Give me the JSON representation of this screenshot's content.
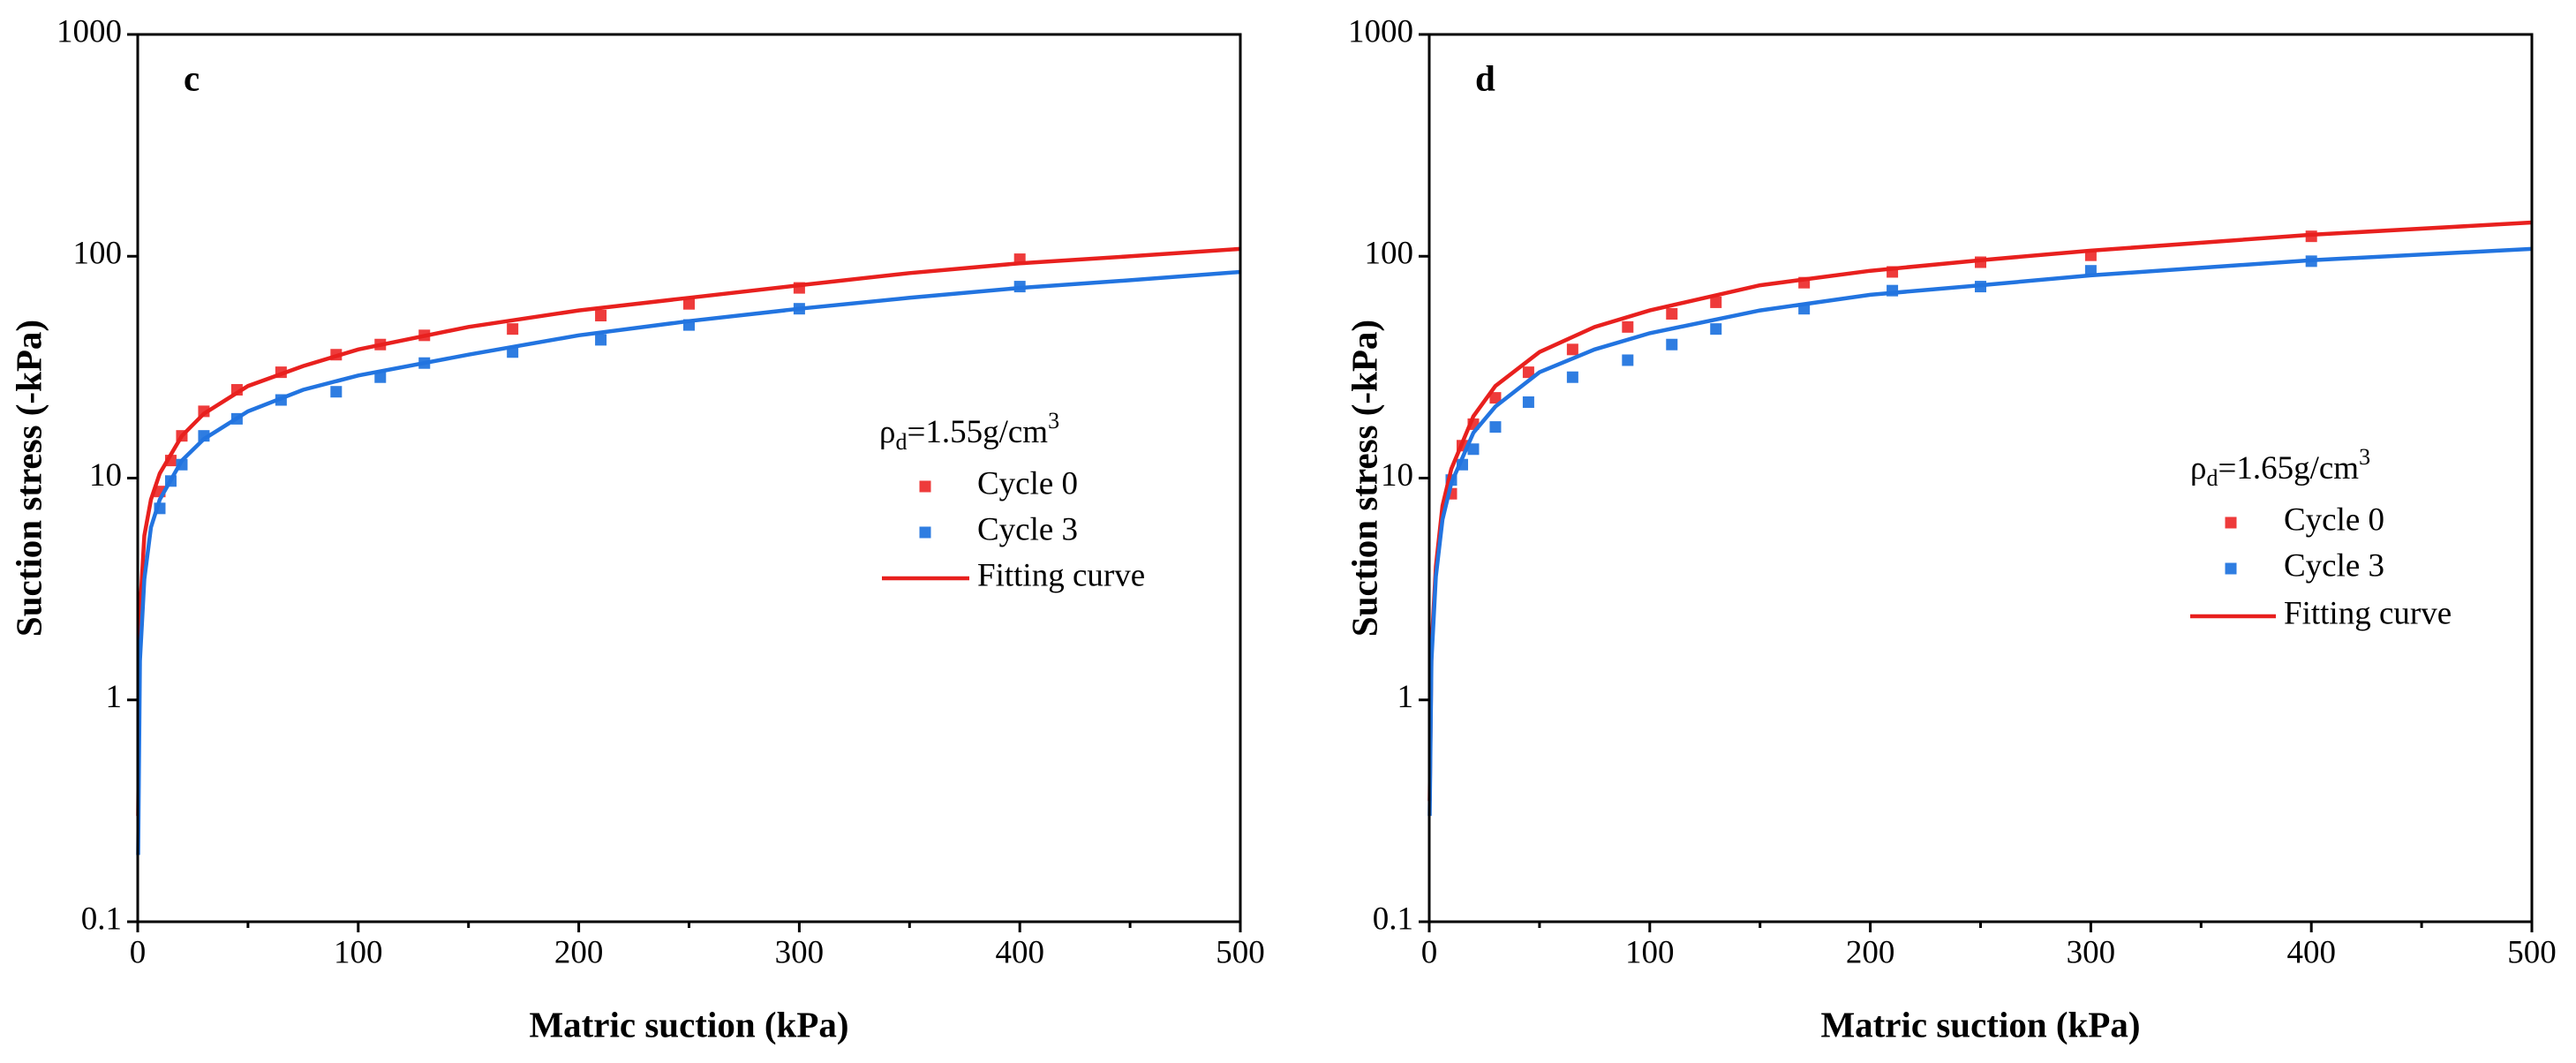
{
  "chart_data": [
    {
      "type": "scatter",
      "label": "c",
      "x_label": "Matric suction (kPa)",
      "y_label": "Suction stress (-kPa)",
      "y_log": true,
      "xlim": [
        0,
        500
      ],
      "xticks": [
        0,
        100,
        200,
        300,
        400,
        500
      ],
      "xminorticks": [
        50,
        150,
        250,
        350,
        450
      ],
      "ylim": [
        0.1,
        1000
      ],
      "yticks": [
        0.1,
        1,
        10,
        100,
        1000
      ],
      "legend_title": {
        "base": "ρ",
        "sub": "d",
        "main": "=1.55g/cm",
        "sup": "3"
      },
      "series": [
        {
          "name": "Cycle 0",
          "kind": "scatter",
          "color": "#ee3b3b",
          "x": [
            10,
            15,
            20,
            30,
            45,
            65,
            90,
            110,
            130,
            170,
            210,
            250,
            300,
            400
          ],
          "values": [
            8.7,
            12,
            15.5,
            20,
            25,
            30,
            36,
            40,
            44,
            47,
            54,
            61,
            72,
            97
          ]
        },
        {
          "name": "Cycle 3",
          "kind": "scatter",
          "color": "#2f7de1",
          "x": [
            10,
            15,
            20,
            30,
            45,
            65,
            90,
            110,
            130,
            170,
            210,
            250,
            300,
            400
          ],
          "values": [
            7.3,
            9.7,
            11.5,
            15.5,
            18.5,
            22.5,
            24.5,
            28.5,
            33,
            37,
            42,
            49,
            58,
            73
          ]
        },
        {
          "name": "Fitting curve",
          "kind": "line",
          "color": "#e8201e",
          "x": [
            0.2,
            1,
            3,
            6,
            10,
            20,
            30,
            50,
            75,
            100,
            150,
            200,
            250,
            300,
            350,
            400,
            450,
            500
          ],
          "values": [
            0.3,
            2.5,
            5.5,
            8,
            10.5,
            15.5,
            19.5,
            26,
            32,
            38,
            48,
            57,
            65,
            74,
            84,
            93,
            100,
            108
          ]
        },
        {
          "kind": "line",
          "color": "#2274e0",
          "x": [
            0.2,
            1,
            3,
            6,
            10,
            20,
            30,
            50,
            75,
            100,
            150,
            200,
            250,
            300,
            350,
            400,
            450,
            500
          ],
          "values": [
            0.2,
            1.5,
            3.5,
            6,
            8,
            12,
            15,
            20,
            25,
            29,
            36,
            44,
            51,
            58,
            65,
            72,
            78,
            85
          ]
        }
      ]
    },
    {
      "type": "scatter",
      "label": "d",
      "x_label": "Matric suction (kPa)",
      "y_label": "Suction stress (-kPa)",
      "y_log": true,
      "xlim": [
        0,
        500
      ],
      "xticks": [
        0,
        100,
        200,
        300,
        400,
        500
      ],
      "xminorticks": [
        50,
        150,
        250,
        350,
        450
      ],
      "ylim": [
        0.1,
        1000
      ],
      "yticks": [
        0.1,
        1,
        10,
        100,
        1000
      ],
      "legend_title": {
        "base": "ρ",
        "sub": "d",
        "main": "=1.65g/cm",
        "sup": "3"
      },
      "series": [
        {
          "name": "Cycle 0",
          "kind": "scatter",
          "color": "#ee3b3b",
          "x": [
            10,
            15,
            20,
            30,
            45,
            65,
            90,
            110,
            130,
            170,
            210,
            250,
            300,
            400
          ],
          "values": [
            8.5,
            14,
            17.5,
            23,
            30,
            38,
            48,
            55,
            62,
            76,
            85,
            94,
            101,
            123
          ]
        },
        {
          "name": "Cycle 3",
          "kind": "scatter",
          "color": "#2f7de1",
          "x": [
            10,
            15,
            20,
            30,
            45,
            65,
            90,
            110,
            130,
            170,
            210,
            250,
            300,
            400
          ],
          "values": [
            9.8,
            11.5,
            13.5,
            17,
            22,
            28.5,
            34,
            40,
            47,
            58,
            70,
            73,
            86,
            95
          ]
        },
        {
          "name": "Fitting curve",
          "kind": "line",
          "color": "#e8201e",
          "x": [
            0.2,
            1,
            3,
            6,
            10,
            20,
            30,
            50,
            75,
            100,
            150,
            200,
            250,
            300,
            400,
            500
          ],
          "values": [
            0.35,
            1.7,
            4,
            7.5,
            11,
            19,
            26,
            37,
            48,
            57,
            74,
            86,
            96,
            106,
            125,
            142
          ]
        },
        {
          "kind": "line",
          "color": "#2274e0",
          "x": [
            0.2,
            1,
            3,
            6,
            10,
            20,
            30,
            50,
            75,
            100,
            150,
            200,
            250,
            300,
            400,
            500
          ],
          "values": [
            0.3,
            1.5,
            3.6,
            6.5,
            9.5,
            16,
            21,
            30,
            38,
            45,
            57,
            67,
            74,
            82,
            96,
            108
          ]
        }
      ]
    }
  ]
}
